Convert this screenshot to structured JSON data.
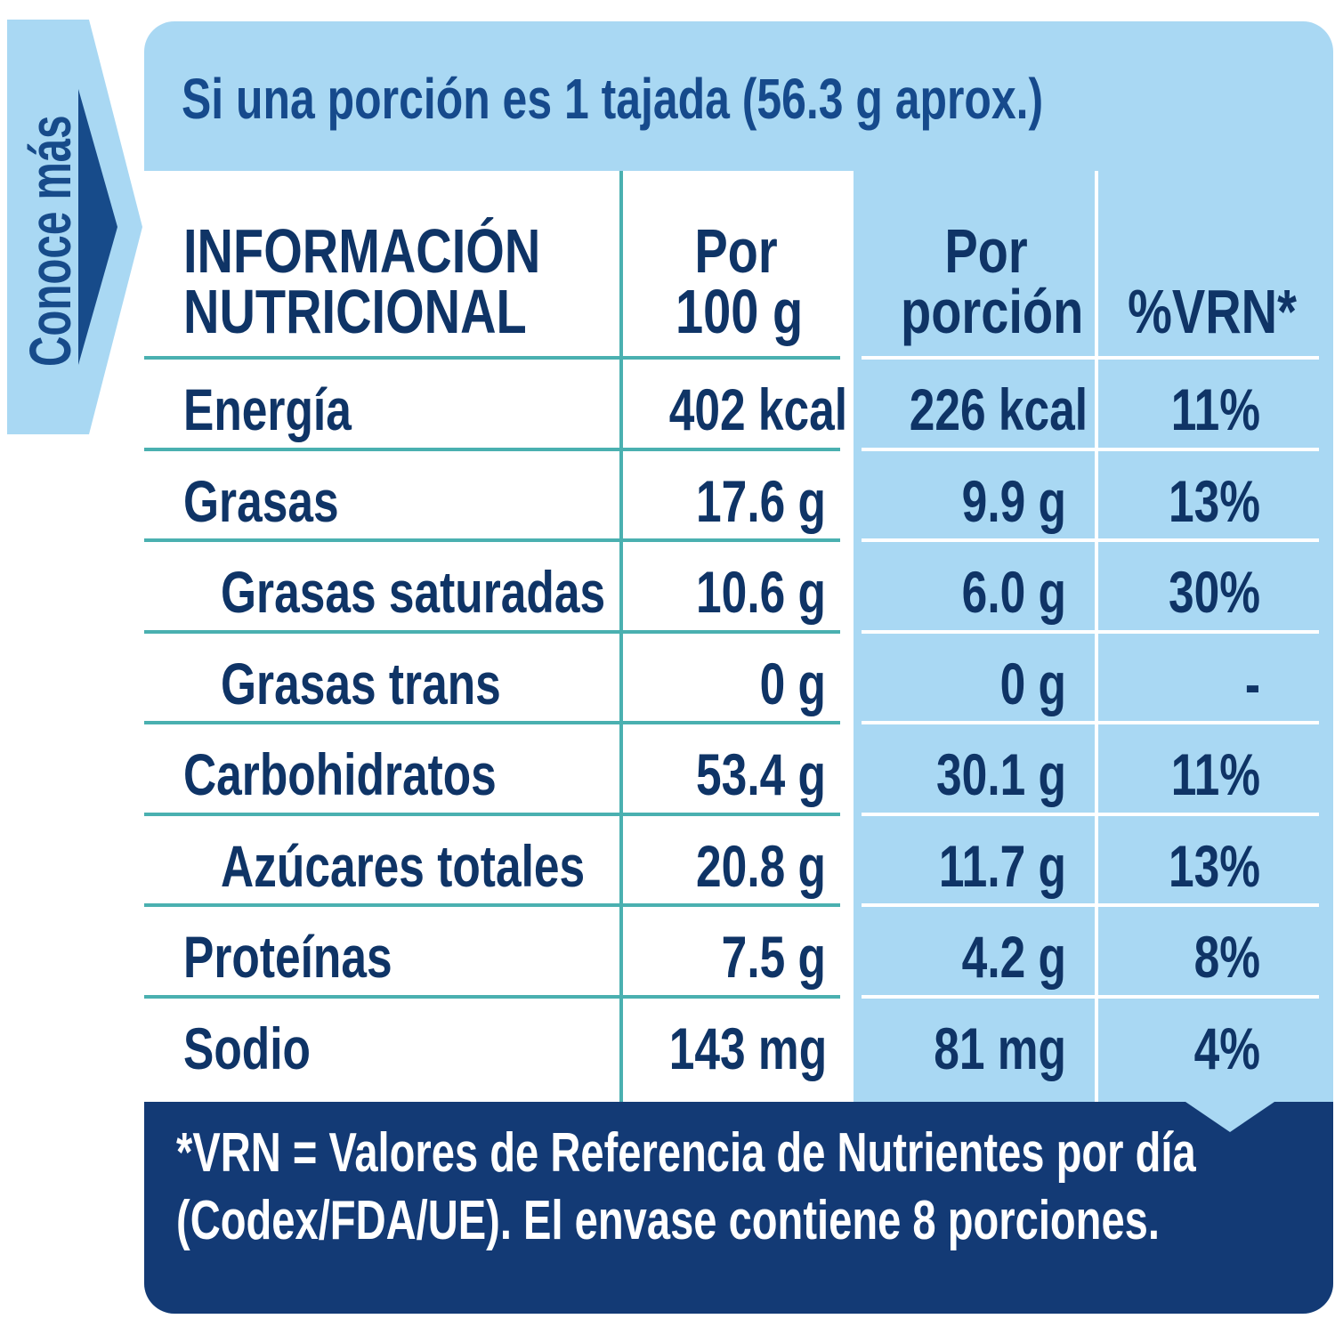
{
  "side_tab": {
    "label": "Conoce más"
  },
  "serving_text": "Si una porción es 1 tajada (56.3 g aprox.)",
  "headers": {
    "name_line1": "INFORMACIÓN",
    "name_line2": "NUTRICIONAL",
    "per100_line1": "Por",
    "per100_line2": "100 g",
    "perportion_line1": "Por",
    "perportion_line2": "porción",
    "vrn": "%VRN*"
  },
  "rows": [
    {
      "name": "Energía",
      "per100": "402 kcal",
      "portion": "226 kcal",
      "vrn": "11%"
    },
    {
      "name": "Grasas",
      "per100": "17.6 g",
      "portion": "9.9 g",
      "vrn": "13%"
    },
    {
      "name": "Grasas saturadas",
      "per100": "10.6 g",
      "portion": "6.0 g",
      "vrn": "30%"
    },
    {
      "name": "Grasas trans",
      "per100": "0 g",
      "portion": "0 g",
      "vrn": "-"
    },
    {
      "name": "Carbohidratos",
      "per100": "53.4 g",
      "portion": "30.1 g",
      "vrn": "11%"
    },
    {
      "name": "Azúcares totales",
      "per100": "20.8 g",
      "portion": "11.7 g",
      "vrn": "13%"
    },
    {
      "name": "Proteínas",
      "per100": "7.5 g",
      "portion": "4.2 g",
      "vrn": "8%"
    },
    {
      "name": "Sodio",
      "per100": "143 mg",
      "portion": "81 mg",
      "vrn": "4%"
    }
  ],
  "footer": {
    "line1": "*VRN = Valores de Referencia de Nutrientes por día",
    "line2": "(Codex/FDA/UE). El envase contiene 8 porciones."
  },
  "colors": {
    "light_blue": "#a9d8f3",
    "navy": "#133a75",
    "teal": "#4ab0b0",
    "text": "#0f3466"
  }
}
